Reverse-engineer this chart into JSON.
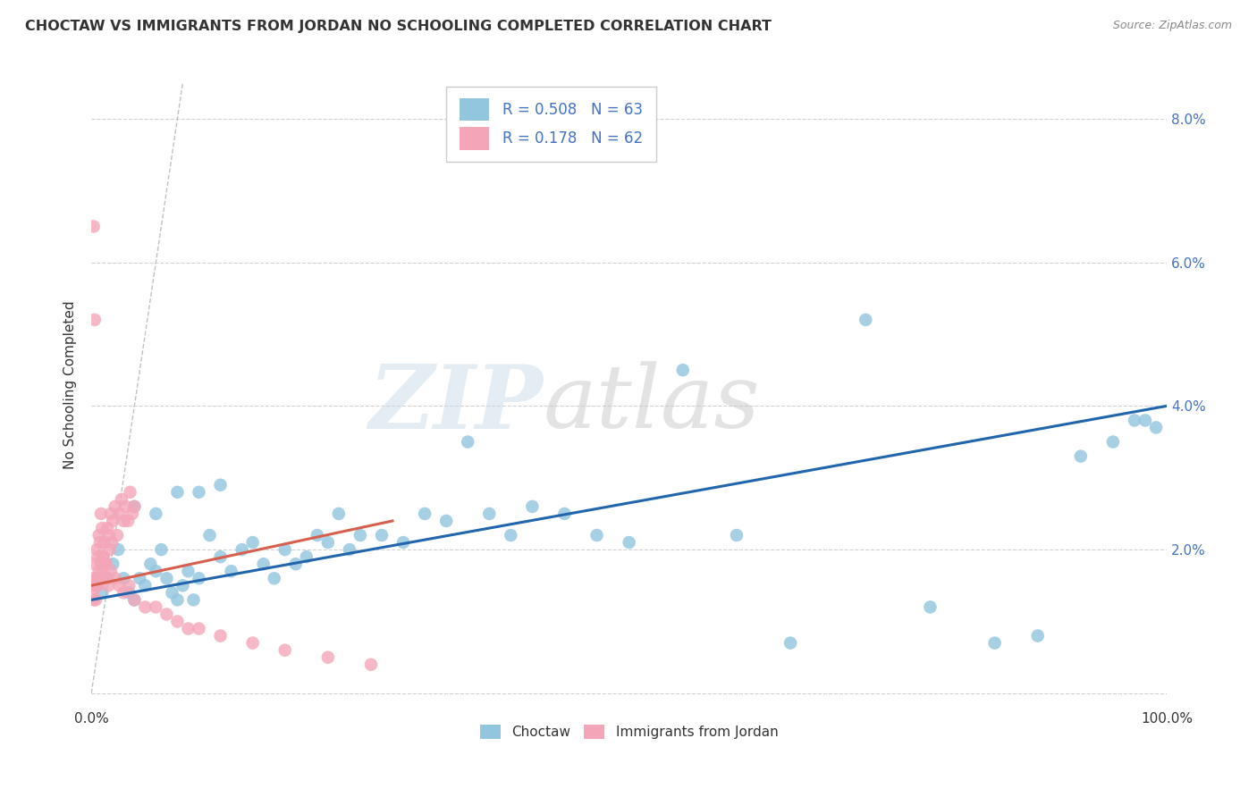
{
  "title": "CHOCTAW VS IMMIGRANTS FROM JORDAN NO SCHOOLING COMPLETED CORRELATION CHART",
  "source": "Source: ZipAtlas.com",
  "ylabel": "No Schooling Completed",
  "xlim": [
    0,
    1.0
  ],
  "ylim": [
    -0.002,
    0.088
  ],
  "legend_r_blue": "0.508",
  "legend_n_blue": "63",
  "legend_r_pink": "0.178",
  "legend_n_pink": "62",
  "legend_label_blue": "Choctaw",
  "legend_label_pink": "Immigrants from Jordan",
  "blue_color": "#92c5de",
  "pink_color": "#f4a6b8",
  "blue_line_color": "#2166ac",
  "pink_line_color": "#d6604d",
  "diag_line_color": "#bbbbbb",
  "blue_scatter_x": [
    0.005,
    0.01,
    0.015,
    0.02,
    0.025,
    0.03,
    0.035,
    0.04,
    0.045,
    0.05,
    0.055,
    0.06,
    0.065,
    0.07,
    0.075,
    0.08,
    0.085,
    0.09,
    0.095,
    0.1,
    0.11,
    0.12,
    0.13,
    0.14,
    0.15,
    0.16,
    0.17,
    0.18,
    0.19,
    0.2,
    0.21,
    0.22,
    0.23,
    0.24,
    0.25,
    0.27,
    0.29,
    0.31,
    0.33,
    0.35,
    0.37,
    0.39,
    0.41,
    0.44,
    0.47,
    0.5,
    0.55,
    0.6,
    0.65,
    0.72,
    0.78,
    0.84,
    0.88,
    0.92,
    0.95,
    0.97,
    0.98,
    0.99,
    0.04,
    0.06,
    0.08,
    0.1,
    0.12
  ],
  "blue_scatter_y": [
    0.015,
    0.014,
    0.016,
    0.018,
    0.02,
    0.016,
    0.014,
    0.013,
    0.016,
    0.015,
    0.018,
    0.017,
    0.02,
    0.016,
    0.014,
    0.013,
    0.015,
    0.017,
    0.013,
    0.016,
    0.022,
    0.019,
    0.017,
    0.02,
    0.021,
    0.018,
    0.016,
    0.02,
    0.018,
    0.019,
    0.022,
    0.021,
    0.025,
    0.02,
    0.022,
    0.022,
    0.021,
    0.025,
    0.024,
    0.035,
    0.025,
    0.022,
    0.026,
    0.025,
    0.022,
    0.021,
    0.045,
    0.022,
    0.007,
    0.052,
    0.012,
    0.007,
    0.008,
    0.033,
    0.035,
    0.038,
    0.038,
    0.037,
    0.026,
    0.025,
    0.028,
    0.028,
    0.029
  ],
  "pink_scatter_x": [
    0.001,
    0.002,
    0.003,
    0.004,
    0.005,
    0.006,
    0.007,
    0.008,
    0.009,
    0.01,
    0.011,
    0.012,
    0.013,
    0.014,
    0.015,
    0.016,
    0.017,
    0.018,
    0.019,
    0.02,
    0.022,
    0.024,
    0.026,
    0.028,
    0.03,
    0.032,
    0.034,
    0.036,
    0.038,
    0.04,
    0.002,
    0.003,
    0.004,
    0.005,
    0.006,
    0.007,
    0.008,
    0.009,
    0.01,
    0.011,
    0.012,
    0.014,
    0.016,
    0.018,
    0.022,
    0.026,
    0.03,
    0.035,
    0.04,
    0.05,
    0.06,
    0.07,
    0.08,
    0.09,
    0.1,
    0.12,
    0.15,
    0.18,
    0.22,
    0.26,
    0.002,
    0.003
  ],
  "pink_scatter_y": [
    0.014,
    0.016,
    0.018,
    0.015,
    0.02,
    0.019,
    0.022,
    0.021,
    0.025,
    0.023,
    0.019,
    0.021,
    0.018,
    0.016,
    0.023,
    0.022,
    0.02,
    0.025,
    0.021,
    0.024,
    0.026,
    0.022,
    0.025,
    0.027,
    0.024,
    0.026,
    0.024,
    0.028,
    0.025,
    0.026,
    0.013,
    0.015,
    0.013,
    0.016,
    0.015,
    0.017,
    0.016,
    0.018,
    0.017,
    0.019,
    0.016,
    0.018,
    0.015,
    0.017,
    0.016,
    0.015,
    0.014,
    0.015,
    0.013,
    0.012,
    0.012,
    0.011,
    0.01,
    0.009,
    0.009,
    0.008,
    0.007,
    0.006,
    0.005,
    0.004,
    0.065,
    0.052
  ]
}
